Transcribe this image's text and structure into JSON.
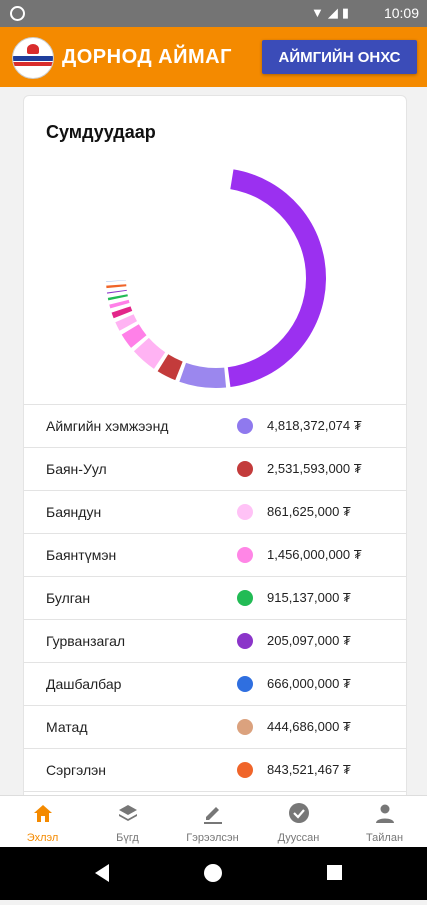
{
  "status_bar": {
    "time": "10:09",
    "icons": [
      "wifi-icon",
      "signal-icon",
      "battery-icon"
    ]
  },
  "app_bar": {
    "title": "ДОРНОД АЙМАГ",
    "button_label": "АЙМГИЙН ОНХС",
    "brand_color": "#f48a00",
    "button_color": "#3b4cb8"
  },
  "card": {
    "title": "Сумдуудаар"
  },
  "chart_data": {
    "type": "pie",
    "variant": "donut",
    "categories": [
      "Аймгийн хэмжээнд",
      "Баян-Уул",
      "Баяндун",
      "Баянтүмэн",
      "Булган",
      "Гурванзагал",
      "Дашбалбар",
      "Матад",
      "Сэргэлэн"
    ],
    "values": [
      4818372074,
      2531593000,
      861625000,
      1456000000,
      915137000,
      205097000,
      666000000,
      444686000,
      843521467
    ],
    "display_values": [
      "4,818,372,074 ₮",
      "2,531,593,000 ₮",
      "861,625,000 ₮",
      "1,456,000,000 ₮",
      "915,137,000 ₮",
      "205,097,000 ₮",
      "666,000,000 ₮",
      "444,686,000 ₮",
      "843,521,467 ₮"
    ]
  },
  "chart_style": {
    "outer_slices": [
      {
        "color": "#9b30f0",
        "fraction": 0.46
      },
      {
        "color": "#9b87ee",
        "fraction": 0.075
      },
      {
        "color": "#c33b3b",
        "fraction": 0.035
      },
      {
        "color": "#ffb3f3",
        "fraction": 0.045
      },
      {
        "color": "#ff80e8",
        "fraction": 0.03
      },
      {
        "color": "#ffb3f3",
        "fraction": 0.02
      },
      {
        "color": "#e3268a",
        "fraction": 0.015
      },
      {
        "color": "#ff80e8",
        "fraction": 0.012
      },
      {
        "color": "#22bb55",
        "fraction": 0.01
      },
      {
        "color": "#8b35c9",
        "fraction": 0.008
      },
      {
        "color": "#f0652a",
        "fraction": 0.01
      },
      {
        "color": "#2f6fe0",
        "fraction": 0.006
      }
    ]
  },
  "legend": [
    {
      "name": "Аймгийн хэмжээнд",
      "value": "4,818,372,074 ₮",
      "color": "#8f79ee"
    },
    {
      "name": "Баян-Уул",
      "value": "2,531,593,000 ₮",
      "color": "#c33b3b"
    },
    {
      "name": "Баяндун",
      "value": "861,625,000 ₮",
      "color": "#ffc2f6"
    },
    {
      "name": "Баянтүмэн",
      "value": "1,456,000,000 ₮",
      "color": "#ff86e6"
    },
    {
      "name": "Булган",
      "value": "915,137,000 ₮",
      "color": "#22bb55"
    },
    {
      "name": "Гурванзагал",
      "value": "205,097,000 ₮",
      "color": "#8b35c9"
    },
    {
      "name": "Дашбалбар",
      "value": "666,000,000 ₮",
      "color": "#2f6fe0"
    },
    {
      "name": "Матад",
      "value": "444,686,000 ₮",
      "color": "#dba27e"
    },
    {
      "name": "Сэргэлэн",
      "value": "843,521,467 ₮",
      "color": "#f0652a"
    }
  ],
  "bottom_nav": [
    {
      "label": "Эхлэл",
      "icon": "home-icon",
      "active": true
    },
    {
      "label": "Бүгд",
      "icon": "layers-icon",
      "active": false
    },
    {
      "label": "Гэрээлсэн",
      "icon": "pen-icon",
      "active": false
    },
    {
      "label": "Дууссан",
      "icon": "check-circle-icon",
      "active": false
    },
    {
      "label": "Тайлан",
      "icon": "person-icon",
      "active": false
    }
  ]
}
